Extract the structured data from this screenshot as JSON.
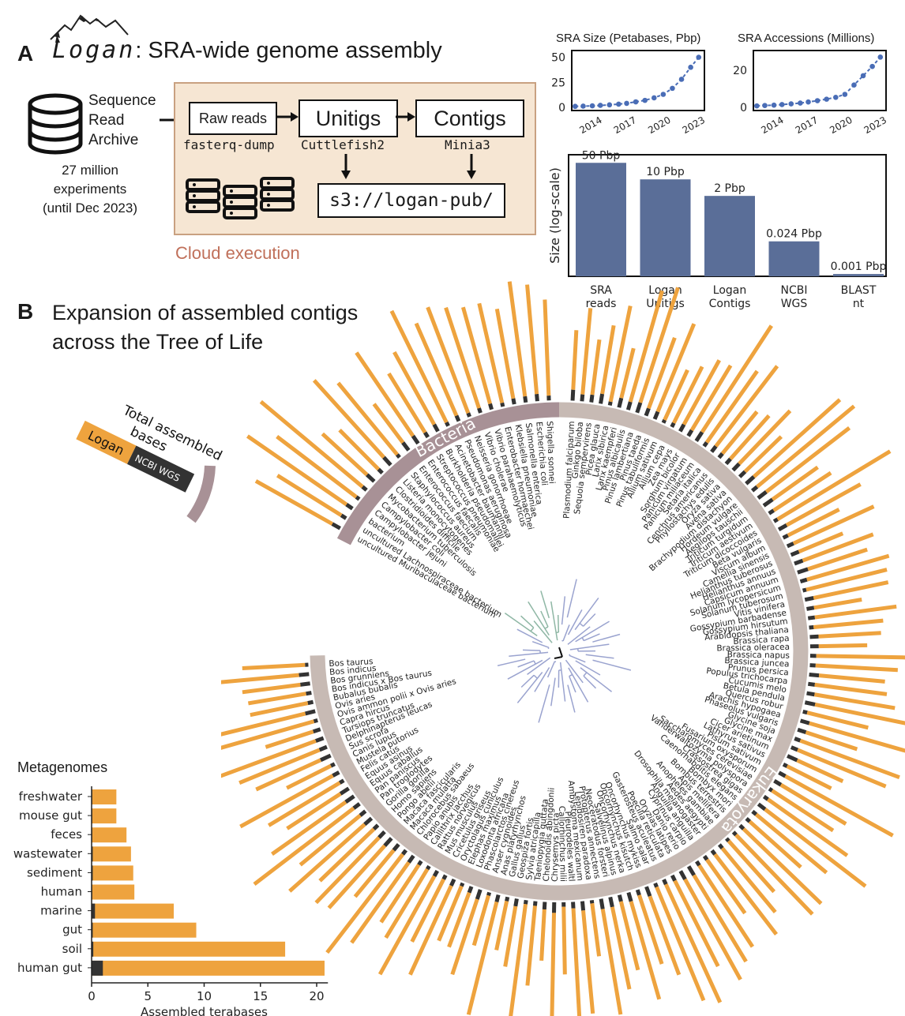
{
  "panel_a": {
    "letter": "A",
    "logo_word": "Logan",
    "title_suffix": ": SRA-wide genome assembly",
    "source": {
      "line1": "Sequence",
      "line2": "Read",
      "line3": "Archive",
      "exp1": "27 million",
      "exp2": "experiments",
      "exp3": "(until Dec 2023)"
    },
    "steps": [
      {
        "label": "Raw reads",
        "tool": "fasterq-dump"
      },
      {
        "label": "Unitigs",
        "tool": "Cuttlefish2"
      },
      {
        "label": "Contigs",
        "tool": "Minia3"
      }
    ],
    "output": "s3://logan-pub/",
    "cloud_label": "Cloud execution"
  },
  "panel_b": {
    "letter": "B",
    "title_line1": "Expansion of assembled contigs",
    "title_line2": "across the Tree of Life",
    "legend": {
      "title_line1": "Total assembled",
      "title_line2": "bases",
      "logan": "Logan",
      "ncbi": "NCBI WGS"
    },
    "bacteria_label": "Bacteria",
    "eukaryota_label": "Eukaryota"
  },
  "colors": {
    "logan": "#eea33e",
    "ncbi": "#333333",
    "bars": "#5a6e98",
    "line": "#4a6db6",
    "cloud": "#f6e6d3",
    "bacteria_band": "#a89196",
    "euk_band": "#c7bab4"
  },
  "chart_data": [
    {
      "type": "line",
      "title": "SRA Size (Petabases, Pbp)",
      "x": [
        2012.5,
        2013.2,
        2014,
        2014.7,
        2015.5,
        2016.3,
        2017,
        2017.8,
        2018.6,
        2019.4,
        2020.2,
        2021,
        2021.8,
        2022.6,
        2023.3
      ],
      "y": [
        1,
        1.2,
        1.5,
        2,
        2.5,
        3.2,
        4,
        5.5,
        7,
        9.5,
        13,
        19,
        28,
        40,
        50
      ],
      "xticks": [
        "2014",
        "2017",
        "2020",
        "2023"
      ],
      "yticks": [
        "0",
        "25",
        "50"
      ],
      "ylim": [
        0,
        52
      ]
    },
    {
      "type": "line",
      "title": "SRA Accessions (Millions)",
      "x": [
        2012.5,
        2013.2,
        2014,
        2014.7,
        2015.5,
        2016.3,
        2017,
        2017.8,
        2018.6,
        2019.4,
        2020.2,
        2021,
        2021.8,
        2022.6,
        2023.3
      ],
      "y": [
        0.8,
        1,
        1.2,
        1.5,
        1.9,
        2.3,
        2.9,
        3.6,
        4.4,
        5.4,
        7,
        12,
        17,
        22,
        27
      ],
      "xticks": [
        "2014",
        "2017",
        "2020",
        "2023"
      ],
      "yticks": [
        "0",
        "20"
      ],
      "ylim": [
        0,
        28
      ]
    },
    {
      "type": "bar",
      "ylabel": "Size (log-scale)",
      "scale": "log",
      "categories": [
        [
          "SRA",
          "reads"
        ],
        [
          "Logan",
          "Unitigs"
        ],
        [
          "Logan",
          "Contigs"
        ],
        [
          "NCBI",
          "WGS"
        ],
        [
          "BLAST",
          "nt"
        ]
      ],
      "values": [
        50,
        10,
        2,
        0.024,
        0.001
      ],
      "value_labels": [
        "50 Pbp",
        "10 Pbp",
        "2 Pbp",
        "0.024 Pbp",
        "0.001 Pbp"
      ]
    },
    {
      "type": "bar",
      "orientation": "horizontal",
      "title": "Metagenomes",
      "xlabel": "Assembled terabases",
      "xticks": [
        "0",
        "5",
        "10",
        "15",
        "20"
      ],
      "xlim": [
        0,
        21
      ],
      "categories": [
        "freshwater",
        "mouse gut",
        "feces",
        "wastewater",
        "sediment",
        "human",
        "marine",
        "gut",
        "soil",
        "human gut"
      ],
      "series": [
        {
          "name": "NCBI WGS",
          "values": [
            0.05,
            0.05,
            0.05,
            0.1,
            0.1,
            0.05,
            0.3,
            0.1,
            0.15,
            1.0
          ]
        },
        {
          "name": "Logan",
          "values": [
            2.2,
            2.2,
            3.1,
            3.5,
            3.7,
            3.8,
            7.3,
            9.3,
            17.2,
            20.7
          ]
        }
      ]
    },
    {
      "type": "radial-bar",
      "title": "Expansion of assembled contigs across the Tree of Life",
      "groups": [
        {
          "name": "Eukaryota",
          "species": [
            "Plasmodium falciparum",
            "Ginkgo biloba",
            "Sequoia sempervirens",
            "Picea glauca",
            "Larix sibirica",
            "Larix kaempferi",
            "Pinus albicaulis",
            "Pinus lambertiana",
            "Pinus taeda",
            "Pinus tabuliformis",
            "Allium sativum",
            "Allium cepa",
            "Zea mays",
            "Sorghum bicolor",
            "Panicum virgatum",
            "Panicum miliaceum",
            "Setaria italica",
            "Cenchrus americanus",
            "Phyllostachys edulis",
            "Oryza sativa",
            "Avena sativa",
            "Brachypodium distachyon",
            "Hordeum vulgare",
            "Aegilops tauschii",
            "Triticum turgidum",
            "Triticum aestivum",
            "Triticum dicoccoides",
            "Beta vulgaris",
            "Viscum album",
            "Camellia sinensis",
            "Helianthus tuberosus",
            "Helianthus annuus",
            "Capsicum annuum",
            "Solanum lycopersicum",
            "Solanum tuberosum",
            "Vitis vinifera",
            "Gossypium barbadense",
            "Gossypium hirsutum",
            "Arabidopsis thaliana",
            "Brassica rapa",
            "Brassica oleracea",
            "Brassica napus",
            "Brassica juncea",
            "Prunus persica",
            "Populus trichocarpa",
            "Cucumis melo",
            "Betula pendula",
            "Quercus robur",
            "Arachis hypogaea",
            "Phaseolus vulgaris",
            "Glycine soja",
            "Glycine max",
            "Cicer arietinum",
            "Lathyrus sativus",
            "Pisum sativum",
            "Fusarium oxysporum",
            "Saccharomyces cerevisiae",
            "Vanderwaltozyma polyspora",
            "Crassostrea gigas",
            "Caenorhabditis elegans",
            "Bombyx mori",
            "Bombus terrestris",
            "Apis mellifera",
            "Anopheles gambiae",
            "Aedes aegypti",
            "Drosophila melanogaster",
            "Anguilla anguilla",
            "Cyprinus carpio",
            "Danio rerio",
            "Oryzias latipes",
            "Poecilia reticulata",
            "Gasterosteus aculeatus",
            "Salmo salar",
            "Oncorhynchus mykiss",
            "Oncorhynchus kisutch",
            "Oncorhynchus nerka",
            "Salvelinus alpinus",
            "Neoceratodus forsteri",
            "Protopterus annectens",
            "Lepidosiren paradoxa",
            "Ambystoma mexicanum",
            "Pleurodeles waltl",
            "Callorhinchus milii",
            "Chrysemys picta",
            "Chelonoidis abingdonii",
            "Taeniopygia guttata",
            "Sylvia atricapilla",
            "Geospiza fortis",
            "Gallus gallus",
            "Anas platyrhynchos",
            "Anser cygnoides",
            "Phascolarctos cinereus",
            "Loxodonta africana",
            "Elephas maximus",
            "Oryctolagus cuniculus",
            "Cricetulus griseus",
            "Mus musculus",
            "Rattus norvegicus",
            "Callithrix jacchus",
            "Papio anubis",
            "Chlorocebus sabaeus",
            "Macaca mulatta",
            "Macaca fascicularis",
            "Pongo abelii",
            "Homo sapiens",
            "Gorilla gorilla",
            "Pan troglodytes",
            "Pan paniscus",
            "Equus caballus",
            "Equus asinus",
            "Felis catus",
            "Mustela putorius",
            "Canis lupus",
            "Sus scrofa",
            "Delphinapterus leucas",
            "Tursiops truncatus",
            "Capra hircus",
            "Ovis ammon polii x Ovis aries",
            "Ovis aries",
            "Bubalus bubalis",
            "Bos indicus x Bos taurus",
            "Bos grunniens",
            "Bos indicus",
            "Bos taurus"
          ]
        },
        {
          "name": "Bacteria",
          "species": [
            "uncultured Muribaculaceae bacterium",
            "uncultured Lachnospiraceae bacterium",
            "bacterium",
            "Campylobacter jejuni",
            "Campylobacter coli",
            "Mycobacterium tuberculosis",
            "Clostridioides difficile",
            "Listeria monocytogenes",
            "Staphylococcus aureus",
            "Enterococcus faecium",
            "Enterococcus faecalis",
            "Streptococcus pneumoniae",
            "Burkholderia pseudomallei",
            "Acinetobacter baumannii",
            "Pseudomonas aeruginosa",
            "Neisseria gonorrhoeae",
            "Vibrio cholerae",
            "Vibrio parahaemolyticus",
            "Enterobacter hormaechei",
            "Klebsiella pneumoniae",
            "Salmonella enterica",
            "Escherichia coli",
            "Shigella sonnei"
          ]
        }
      ]
    }
  ]
}
